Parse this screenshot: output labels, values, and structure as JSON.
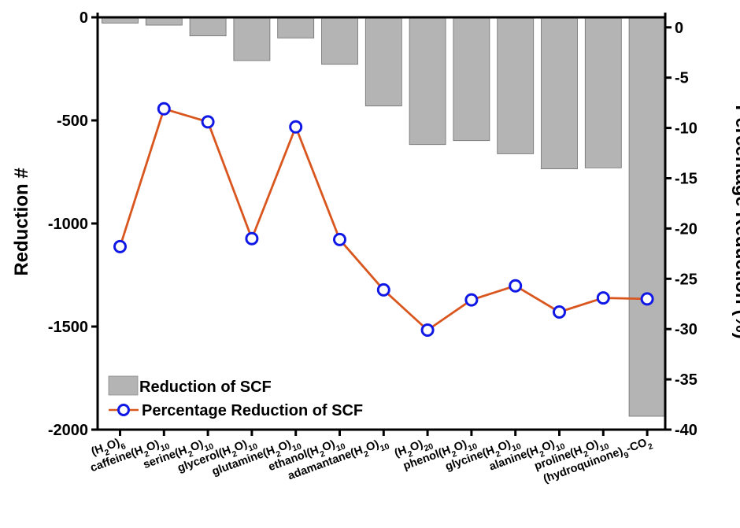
{
  "chart_data": {
    "type": "bar",
    "categories": [
      [
        "(H",
        {
          "sub": "2"
        },
        "O)",
        {
          "sub": "6"
        }
      ],
      [
        "caffeine(H",
        {
          "sub": "2"
        },
        "O)",
        {
          "sub": "10"
        }
      ],
      [
        "serine(H",
        {
          "sub": "2"
        },
        "O)",
        {
          "sub": "10"
        }
      ],
      [
        "glycerol(H",
        {
          "sub": "2"
        },
        "O)",
        {
          "sub": "10"
        }
      ],
      [
        "glutamine(H",
        {
          "sub": "2"
        },
        "O)",
        {
          "sub": "10"
        }
      ],
      [
        "ethanol(H",
        {
          "sub": "2"
        },
        "O)",
        {
          "sub": "10"
        }
      ],
      [
        "adamantane(H",
        {
          "sub": "2"
        },
        "O)",
        {
          "sub": "10"
        }
      ],
      [
        "(H",
        {
          "sub": "2"
        },
        "O)",
        {
          "sub": "20"
        }
      ],
      [
        "phenol(H",
        {
          "sub": "2"
        },
        "O)",
        {
          "sub": "10"
        }
      ],
      [
        "glycine(H",
        {
          "sub": "2"
        },
        "O)",
        {
          "sub": "10"
        }
      ],
      [
        "alanine(H",
        {
          "sub": "2"
        },
        "O)",
        {
          "sub": "10"
        }
      ],
      [
        "proline(H",
        {
          "sub": "2"
        },
        "O)",
        {
          "sub": "10"
        }
      ],
      [
        "(hydroquinone)",
        {
          "sub": "9"
        },
        "-CO",
        {
          "sub": "2"
        }
      ]
    ],
    "series": [
      {
        "name": "Reduction of SCF",
        "kind": "bar",
        "axis": "left",
        "color": "#b4b4b4",
        "values": [
          -28,
          -38,
          -90,
          -210,
          -100,
          -228,
          -430,
          -617,
          -598,
          -662,
          -735,
          -730,
          -1935
        ]
      },
      {
        "name": "Percentage Reduction of SCF",
        "kind": "line",
        "axis": "right",
        "color": "#d9561f",
        "marker_color": "#1018e6",
        "values": [
          -21.8,
          -8.1,
          -9.4,
          -21.0,
          -9.9,
          -21.1,
          -26.1,
          -30.1,
          -27.1,
          -25.7,
          -28.3,
          -26.9,
          -27.0
        ]
      }
    ],
    "ylabel": "Reduction #",
    "ylabel_right": "Percentage Reduction (%)",
    "ylim": [
      -2000,
      0
    ],
    "ylim_right": [
      -40,
      1
    ],
    "yticks": [
      0,
      -500,
      -1000,
      -1500,
      -2000
    ],
    "yticks_right": [
      0,
      -5,
      -10,
      -15,
      -20,
      -25,
      -30,
      -35,
      -40
    ],
    "grid": false,
    "legend_placement": "bottom-left"
  }
}
